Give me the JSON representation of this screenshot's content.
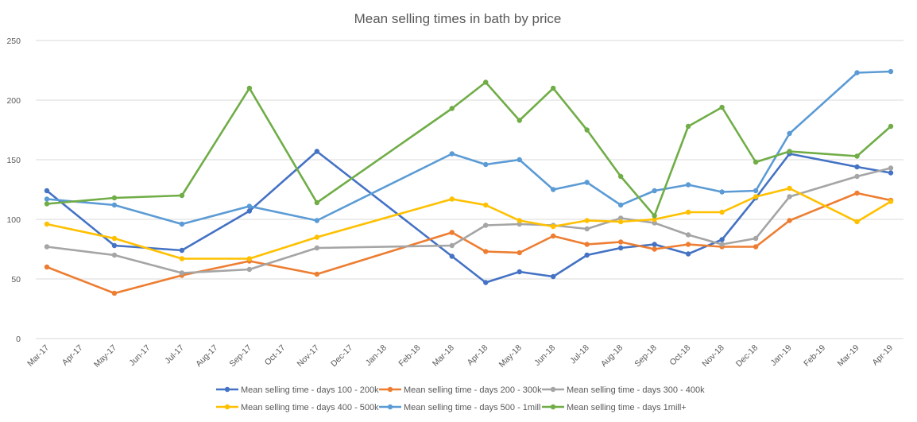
{
  "chart_data": {
    "type": "line",
    "title": "Mean selling times in bath by price",
    "xlabel": "",
    "ylabel": "",
    "ylim": [
      0,
      250
    ],
    "yticks": [
      0,
      50,
      100,
      150,
      200,
      250
    ],
    "grid": true,
    "legend_position": "bottom",
    "x_ticks": [
      "Mar-17",
      "Apr-17",
      "May-17",
      "Jun-17",
      "Jul-17",
      "Aug-17",
      "Sep-17",
      "Oct-17",
      "Nov-17",
      "Dec-17",
      "Jan-18",
      "Feb-18",
      "Mar-18",
      "Apr-18",
      "May-18",
      "Jun-18",
      "Jul-18",
      "Aug-18",
      "Sep-18",
      "Oct-18",
      "Nov-18",
      "Dec-18",
      "Jan-19",
      "Feb-19",
      "Mar-19",
      "Apr-19"
    ],
    "series": [
      {
        "name": "Mean selling time - days 100 - 200k",
        "color": "#4472c4",
        "points": [
          [
            "Mar-17",
            124
          ],
          [
            "May-17",
            78
          ],
          [
            "Jul-17",
            74
          ],
          [
            "Sep-17",
            107
          ],
          [
            "Nov-17",
            157
          ],
          [
            "Mar-18",
            69
          ],
          [
            "Apr-18",
            47
          ],
          [
            "May-18",
            56
          ],
          [
            "Jun-18",
            52
          ],
          [
            "Jul-18",
            70
          ],
          [
            "Aug-18",
            76
          ],
          [
            "Sep-18",
            79
          ],
          [
            "Oct-18",
            71
          ],
          [
            "Nov-18",
            83
          ],
          [
            "Dec-18",
            118
          ],
          [
            "Jan-19",
            155
          ],
          [
            "Mar-19",
            144
          ],
          [
            "Apr-19",
            139
          ]
        ]
      },
      {
        "name": "Mean selling time - days 200 - 300k",
        "color": "#ed7d31",
        "points": [
          [
            "Mar-17",
            60
          ],
          [
            "May-17",
            38
          ],
          [
            "Jul-17",
            53
          ],
          [
            "Sep-17",
            65
          ],
          [
            "Nov-17",
            54
          ],
          [
            "Mar-18",
            89
          ],
          [
            "Apr-18",
            73
          ],
          [
            "May-18",
            72
          ],
          [
            "Jun-18",
            86
          ],
          [
            "Jul-18",
            79
          ],
          [
            "Aug-18",
            81
          ],
          [
            "Sep-18",
            75
          ],
          [
            "Oct-18",
            79
          ],
          [
            "Nov-18",
            77
          ],
          [
            "Dec-18",
            77
          ],
          [
            "Jan-19",
            99
          ],
          [
            "Mar-19",
            122
          ],
          [
            "Apr-19",
            116
          ]
        ]
      },
      {
        "name": "Mean selling time - days 300 - 400k",
        "color": "#a5a5a5",
        "points": [
          [
            "Mar-17",
            77
          ],
          [
            "May-17",
            70
          ],
          [
            "Jul-17",
            55
          ],
          [
            "Sep-17",
            58
          ],
          [
            "Nov-17",
            76
          ],
          [
            "Mar-18",
            78
          ],
          [
            "Apr-18",
            95
          ],
          [
            "May-18",
            96
          ],
          [
            "Jun-18",
            95
          ],
          [
            "Jul-18",
            92
          ],
          [
            "Aug-18",
            101
          ],
          [
            "Sep-18",
            97
          ],
          [
            "Oct-18",
            87
          ],
          [
            "Nov-18",
            79
          ],
          [
            "Dec-18",
            84
          ],
          [
            "Jan-19",
            119
          ],
          [
            "Mar-19",
            136
          ],
          [
            "Apr-19",
            143
          ]
        ]
      },
      {
        "name": "Mean selling time - days 400 - 500k",
        "color": "#ffc000",
        "points": [
          [
            "Mar-17",
            96
          ],
          [
            "May-17",
            84
          ],
          [
            "Jul-17",
            67
          ],
          [
            "Sep-17",
            67
          ],
          [
            "Nov-17",
            85
          ],
          [
            "Mar-18",
            117
          ],
          [
            "Apr-18",
            112
          ],
          [
            "May-18",
            99
          ],
          [
            "Jun-18",
            94
          ],
          [
            "Jul-18",
            99
          ],
          [
            "Aug-18",
            98
          ],
          [
            "Sep-18",
            100
          ],
          [
            "Oct-18",
            106
          ],
          [
            "Nov-18",
            106
          ],
          [
            "Dec-18",
            119
          ],
          [
            "Jan-19",
            126
          ],
          [
            "Mar-19",
            98
          ],
          [
            "Apr-19",
            115
          ]
        ]
      },
      {
        "name": "Mean selling time - days 500 - 1mill",
        "color": "#5b9bd5",
        "points": [
          [
            "Mar-17",
            117
          ],
          [
            "May-17",
            112
          ],
          [
            "Jul-17",
            96
          ],
          [
            "Sep-17",
            111
          ],
          [
            "Nov-17",
            99
          ],
          [
            "Mar-18",
            155
          ],
          [
            "Apr-18",
            146
          ],
          [
            "May-18",
            150
          ],
          [
            "Jun-18",
            125
          ],
          [
            "Jul-18",
            131
          ],
          [
            "Aug-18",
            112
          ],
          [
            "Sep-18",
            124
          ],
          [
            "Oct-18",
            129
          ],
          [
            "Nov-18",
            123
          ],
          [
            "Dec-18",
            124
          ],
          [
            "Jan-19",
            172
          ],
          [
            "Mar-19",
            223
          ],
          [
            "Apr-19",
            224
          ]
        ]
      },
      {
        "name": "Mean selling time - days 1mill+",
        "color": "#70ad47",
        "points": [
          [
            "Mar-17",
            113
          ],
          [
            "May-17",
            118
          ],
          [
            "Jul-17",
            120
          ],
          [
            "Sep-17",
            210
          ],
          [
            "Nov-17",
            114
          ],
          [
            "Mar-18",
            193
          ],
          [
            "Apr-18",
            215
          ],
          [
            "May-18",
            183
          ],
          [
            "Jun-18",
            210
          ],
          [
            "Jul-18",
            175
          ],
          [
            "Aug-18",
            136
          ],
          [
            "Sep-18",
            103
          ],
          [
            "Oct-18",
            178
          ],
          [
            "Nov-18",
            194
          ],
          [
            "Dec-18",
            148
          ],
          [
            "Jan-19",
            157
          ],
          [
            "Mar-19",
            153
          ],
          [
            "Apr-19",
            178
          ]
        ]
      }
    ]
  }
}
